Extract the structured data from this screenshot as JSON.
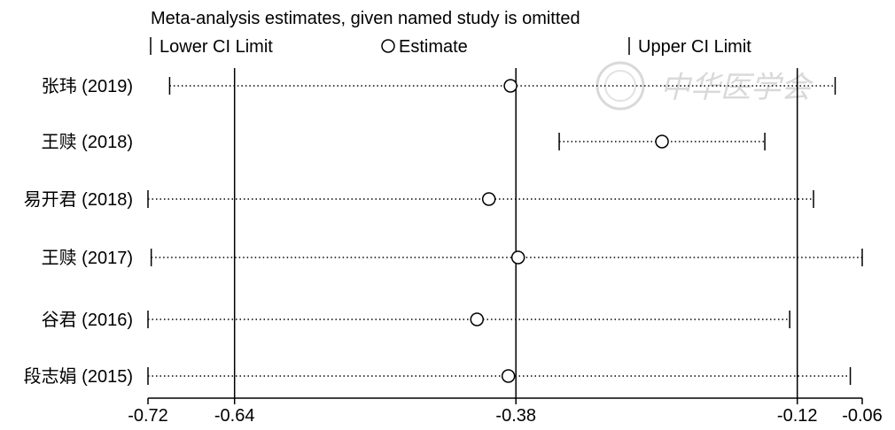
{
  "chart_data": {
    "type": "sensitivity-analysis-forest",
    "title": "Meta-analysis estimates, given named study is omitted",
    "legend": {
      "lower": "Lower CI Limit",
      "estimate": "Estimate",
      "upper": "Upper CI Limit"
    },
    "xlim": [
      -0.72,
      -0.06
    ],
    "xticks": [
      "-0.72",
      "-0.64",
      "-0.38",
      "-0.12",
      "-0.06"
    ],
    "reference_lines": [
      -0.64,
      -0.38,
      -0.12
    ],
    "studies": [
      {
        "label": "张玮 (2019)",
        "lower": -0.7,
        "estimate": -0.385,
        "upper": -0.085
      },
      {
        "label": "王赎 (2018)",
        "lower": -0.34,
        "estimate": -0.245,
        "upper": -0.15
      },
      {
        "label": "易开君 (2018)",
        "lower": -0.72,
        "estimate": -0.405,
        "upper": -0.105
      },
      {
        "label": "王赎 (2017)",
        "lower": -0.717,
        "estimate": -0.378,
        "upper": -0.06
      },
      {
        "label": "谷君 (2016)",
        "lower": -0.72,
        "estimate": -0.416,
        "upper": -0.127
      },
      {
        "label": "段志娟 (2015)",
        "lower": -0.72,
        "estimate": -0.387,
        "upper": -0.071
      }
    ]
  },
  "watermark": {
    "text": "中华医学会"
  }
}
